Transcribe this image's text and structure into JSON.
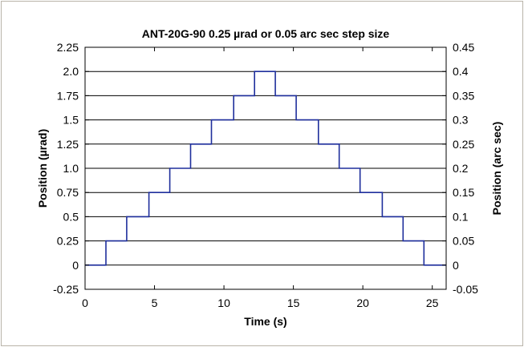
{
  "chart_data": {
    "type": "line",
    "title": "ANT-20G-90 0.25 µrad or 0.05 arc sec step size",
    "xlabel": "Time (s)",
    "ylabel": "Position (µrad)",
    "ylabel_right": "Position (arc sec)",
    "xlim": [
      0,
      26
    ],
    "ylim": [
      -0.25,
      2.25
    ],
    "ylim_right": [
      -0.05,
      0.45
    ],
    "grid_y": true,
    "grid_x": false,
    "x_ticks": [
      "0",
      "5",
      "10",
      "15",
      "20",
      "25"
    ],
    "y_ticks": [
      "-0.25",
      "0",
      "0.25",
      "0.5",
      "0.75",
      "1.0",
      "1.25",
      "1.5",
      "1.75",
      "2.0",
      "2.25"
    ],
    "y_ticks_right": [
      "-0.05",
      "0",
      "0.05",
      "0.1",
      "0.15",
      "0.2",
      "0.25",
      "0.3",
      "0.35",
      "0.4",
      "0.45"
    ],
    "series": [
      {
        "color": "#1f2f9c",
        "x": [
          0,
          1.5,
          1.5,
          3.0,
          3.0,
          4.6,
          4.6,
          6.1,
          6.1,
          7.6,
          7.6,
          9.1,
          9.1,
          10.7,
          10.7,
          12.2,
          12.2,
          13.7,
          13.7,
          15.2,
          15.2,
          16.8,
          16.8,
          18.3,
          18.3,
          19.8,
          19.8,
          21.4,
          21.4,
          22.9,
          22.9,
          24.4,
          24.4,
          26
        ],
        "y": [
          0,
          0,
          0.25,
          0.25,
          0.5,
          0.5,
          0.75,
          0.75,
          1.0,
          1.0,
          1.25,
          1.25,
          1.5,
          1.5,
          1.75,
          1.75,
          2.0,
          2.0,
          1.75,
          1.75,
          1.5,
          1.5,
          1.25,
          1.25,
          1.0,
          1.0,
          0.75,
          0.75,
          0.5,
          0.5,
          0.25,
          0.25,
          0,
          0
        ]
      }
    ]
  }
}
